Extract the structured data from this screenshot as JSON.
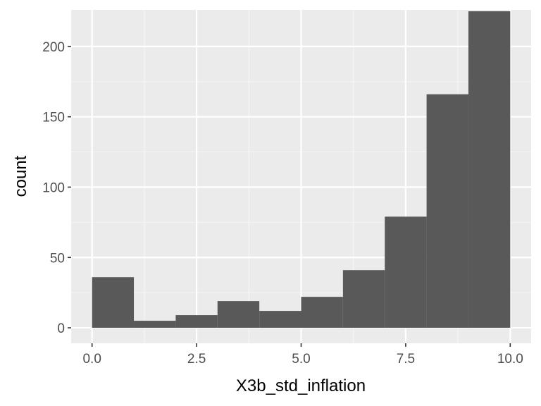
{
  "chart_data": {
    "type": "bar",
    "subtype": "histogram",
    "xlabel": "X3b_std_inflation",
    "ylabel": "count",
    "xlim": [
      -0.5,
      10.5
    ],
    "ylim": [
      -11,
      226
    ],
    "bins": [
      {
        "x0": 0,
        "x1": 1,
        "count": 36
      },
      {
        "x0": 1,
        "x1": 2,
        "count": 5
      },
      {
        "x0": 2,
        "x1": 3,
        "count": 9
      },
      {
        "x0": 3,
        "x1": 4,
        "count": 19
      },
      {
        "x0": 4,
        "x1": 5,
        "count": 12
      },
      {
        "x0": 5,
        "x1": 6,
        "count": 22
      },
      {
        "x0": 6,
        "x1": 7,
        "count": 41
      },
      {
        "x0": 7,
        "x1": 8,
        "count": 79
      },
      {
        "x0": 8,
        "x1": 9,
        "count": 166
      },
      {
        "x0": 9,
        "x1": 10,
        "count": 225
      }
    ],
    "x_ticks": [
      {
        "value": 0,
        "label": "0.0"
      },
      {
        "value": 2.5,
        "label": "2.5"
      },
      {
        "value": 5,
        "label": "5.0"
      },
      {
        "value": 7.5,
        "label": "7.5"
      },
      {
        "value": 10,
        "label": "10.0"
      }
    ],
    "y_ticks": [
      {
        "value": 0,
        "label": "0"
      },
      {
        "value": 50,
        "label": "50"
      },
      {
        "value": 100,
        "label": "100"
      },
      {
        "value": 150,
        "label": "150"
      },
      {
        "value": 200,
        "label": "200"
      }
    ],
    "grid": true,
    "legend": "none",
    "colors": {
      "panel_background": "#ebebeb",
      "grid_major": "#ffffff",
      "grid_minor": "#f5f5f5",
      "bar_fill": "#595959",
      "tick_mark": "#333333"
    }
  }
}
